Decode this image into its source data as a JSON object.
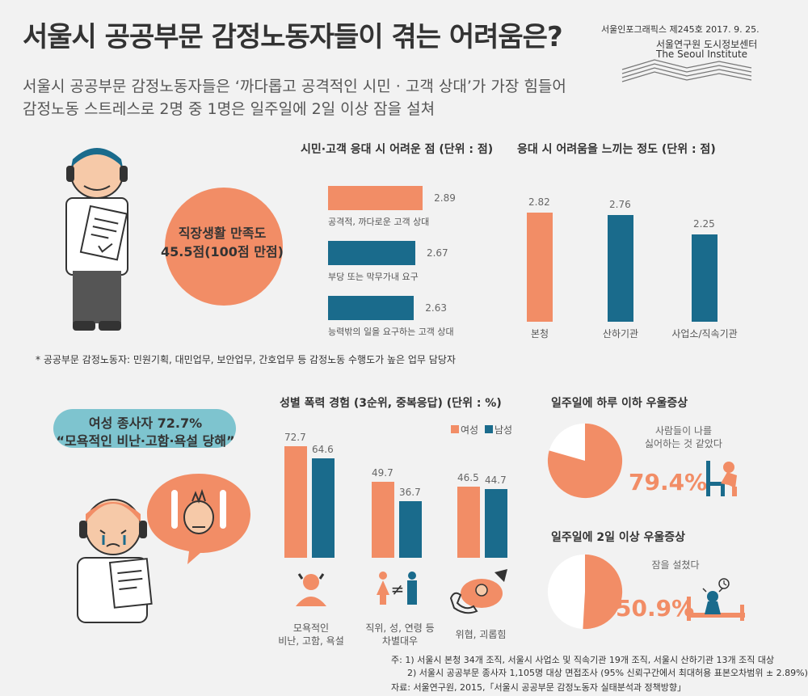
{
  "header": {
    "title": "서울시 공공부문 감정노동자들이 겪는 어려움은?",
    "subtitle_line1": "서울시 공공부문 감정노동자들은 ‘까다롭고 공격적인 시민 · 고객 상대’가 가장 힘들어",
    "subtitle_line2": "감정노동 스트레스로 2명 중 1명은 일주일에 2일 이상 잠을 설쳐",
    "issue": "서울인포그래픽스 제245호 2017. 9. 25.",
    "org_kr": "서울연구원 도시정보센터",
    "org_en": "The Seoul Institute"
  },
  "satisfaction": {
    "line1": "직장생활 만족도",
    "line2": "45.5점(100점 만점)"
  },
  "difficulty_chart": {
    "title": "시민·고객 응대 시 어려운 점 (단위 : 점)",
    "items": [
      {
        "label": "공격적, 까다로운 고객 상대",
        "value": 2.89,
        "value_text": "2.89",
        "color": "#f28d66"
      },
      {
        "label": "부당 또는 막무가내 요구",
        "value": 2.67,
        "value_text": "2.67",
        "color": "#1a6b8c"
      },
      {
        "label": "능력밖의 일을 요구하는 고객 상대",
        "value": 2.63,
        "value_text": "2.63",
        "color": "#1a6b8c"
      }
    ]
  },
  "degree_chart": {
    "title": "응대 시 어려움을 느끼는 정도 (단위 : 점)",
    "items": [
      {
        "label": "본청",
        "value": 2.82,
        "value_text": "2.82",
        "color": "#f28d66"
      },
      {
        "label": "산하기관",
        "value": 2.76,
        "value_text": "2.76",
        "color": "#1a6b8c"
      },
      {
        "label": "사업소/직속기관",
        "value": 2.25,
        "value_text": "2.25",
        "color": "#1a6b8c"
      }
    ]
  },
  "footnote_top": "* 공공부문 감정노동자: 민원기획, 대민업무, 보안업무, 간호업무 등 감정노동 수행도가 높은 업무 담당자",
  "female_callout": {
    "line1": "여성 종사자 72.7%",
    "line2": "“모욕적인 비난·고함·욕설 당해”"
  },
  "violence_chart": {
    "title": "성별 폭력 경험 (3순위, 중복응답) (단위 : %)",
    "legend_female": "여성",
    "legend_male": "남성",
    "color_female": "#f28d66",
    "color_male": "#1a6b8c",
    "groups": [
      {
        "label1": "모욕적인",
        "label2": "비난, 고함, 욕설",
        "female": 72.7,
        "male": 64.6,
        "female_text": "72.7",
        "male_text": "64.6"
      },
      {
        "label1": "직위, 성, 연령 등",
        "label2": "차별대우",
        "female": 49.7,
        "male": 36.7,
        "female_text": "49.7",
        "male_text": "36.7"
      },
      {
        "label1": "위협, 괴롭힘",
        "label2": "",
        "female": 46.5,
        "male": 44.7,
        "female_text": "46.5",
        "male_text": "44.7"
      }
    ]
  },
  "depression1": {
    "title": "일주일에 하루 이하 우울증상",
    "note_line1": "사람들이 나를",
    "note_line2": "싫어하는 것 같았다",
    "percent": 79.4,
    "percent_text": "79.4%"
  },
  "depression2": {
    "title": "일주일에 2일 이상 우울증상",
    "note_line1": "잠을 설쳤다",
    "percent": 50.9,
    "percent_text": "50.9%"
  },
  "footer": {
    "note1": "주: 1) 서울시 본청 34개 조직, 서울시 사업소 및 직속기관 19개 조직, 서울시 산하기관 13개 조직 대상",
    "note2": "2) 서울시 공공부문 종사자 1,105명 대상 면접조사 (95% 신뢰구간에서 최대허용 표본오차범위 ± 2.89%)",
    "source": "자료: 서울연구원, 2015,「서울시 공공부문 감정노동자 실태분석과 정책방향」"
  }
}
